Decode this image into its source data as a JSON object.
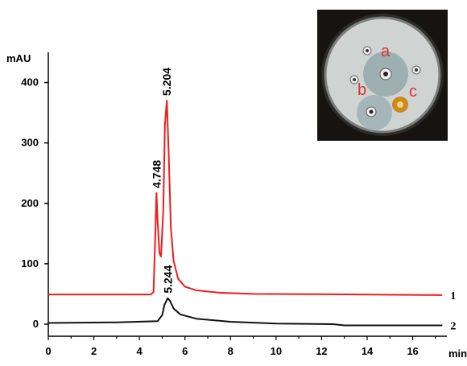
{
  "chart_data": {
    "type": "line",
    "xlabel": "min",
    "ylabel": "mAU",
    "xlim": [
      0,
      17.5
    ],
    "ylim": [
      -20,
      450
    ],
    "x_ticks": [
      0,
      2,
      4,
      6,
      8,
      10,
      12,
      14,
      16
    ],
    "y_ticks": [
      0,
      100,
      200,
      300,
      400
    ],
    "series": [
      {
        "name": "1",
        "color": "#ee1c1c",
        "points": [
          [
            0,
            49
          ],
          [
            4.5,
            49
          ],
          [
            4.62,
            53
          ],
          [
            4.7,
            150
          ],
          [
            4.748,
            217
          ],
          [
            4.8,
            170
          ],
          [
            4.88,
            118
          ],
          [
            4.95,
            112
          ],
          [
            5.05,
            190
          ],
          [
            5.12,
            330
          ],
          [
            5.204,
            370
          ],
          [
            5.28,
            290
          ],
          [
            5.38,
            160
          ],
          [
            5.5,
            105
          ],
          [
            5.7,
            75
          ],
          [
            6.0,
            62
          ],
          [
            6.5,
            56
          ],
          [
            7.5,
            52
          ],
          [
            9,
            50
          ],
          [
            12,
            49.5
          ],
          [
            17.3,
            48
          ]
        ]
      },
      {
        "name": "2",
        "color": "#111111",
        "points": [
          [
            0,
            2
          ],
          [
            3,
            3
          ],
          [
            4.8,
            5
          ],
          [
            5.0,
            15
          ],
          [
            5.1,
            32
          ],
          [
            5.244,
            43
          ],
          [
            5.35,
            38
          ],
          [
            5.5,
            26
          ],
          [
            5.8,
            16
          ],
          [
            6.5,
            9
          ],
          [
            8,
            4
          ],
          [
            10,
            1
          ],
          [
            12.5,
            0
          ],
          [
            13,
            -2
          ],
          [
            17.3,
            -2
          ]
        ]
      }
    ],
    "peak_labels": [
      {
        "text": "4.748",
        "x": 4.748,
        "y": 217
      },
      {
        "text": "5.204",
        "x": 5.204,
        "y": 370
      },
      {
        "text": "5.244",
        "x": 5.244,
        "y": 43
      }
    ],
    "inset": {
      "labels": [
        "a",
        "b",
        "c"
      ],
      "letter_color": "#d9352f"
    }
  }
}
